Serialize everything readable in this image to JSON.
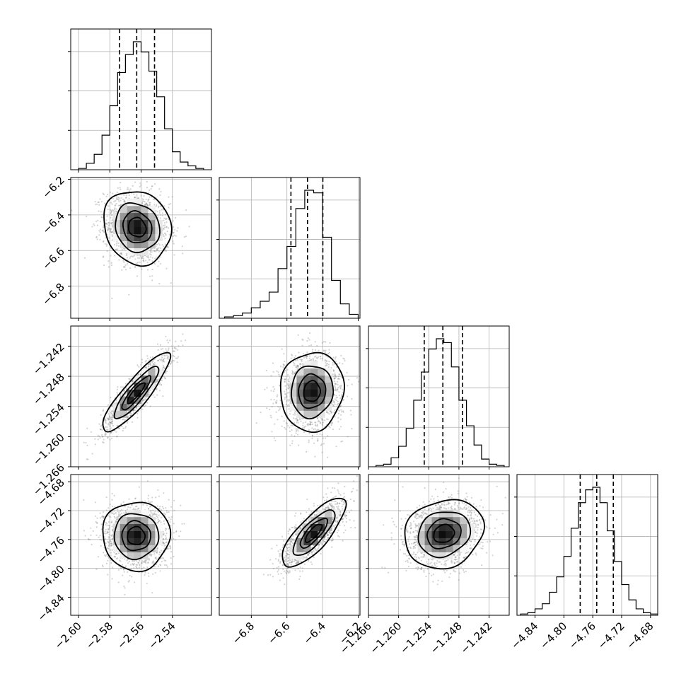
{
  "chart_data": {
    "type": "corner",
    "parameters": [
      {
        "index": 0,
        "range": [
          -2.605,
          -2.515
        ],
        "ticks": [
          -2.6,
          -2.58,
          -2.56,
          -2.54
        ],
        "tick_labels": [
          "−2.60",
          "−2.58",
          "−2.56",
          "−2.54"
        ],
        "quantiles": [
          -2.5738,
          -2.5628,
          -2.5514
        ],
        "hist_bins": [
          -2.6,
          -2.595,
          -2.59,
          -2.585,
          -2.58,
          -2.575,
          -2.57,
          -2.565,
          -2.56,
          -2.555,
          -2.55,
          -2.545,
          -2.54,
          -2.535,
          -2.53,
          -2.525,
          -2.52
        ],
        "hist_counts": [
          1,
          5,
          12,
          27,
          50,
          76,
          90,
          100,
          92,
          77,
          57,
          32,
          14,
          6,
          3,
          1
        ]
      },
      {
        "index": 1,
        "range": [
          -6.98,
          -6.19
        ],
        "ticks": [
          -6.8,
          -6.6,
          -6.4,
          -6.2
        ],
        "tick_labels": [
          "−6.8",
          "−6.6",
          "−6.4",
          "−6.2"
        ],
        "quantiles": [
          -6.5775,
          -6.4845,
          -6.3984
        ],
        "hist_bins": [
          -6.95,
          -6.9,
          -6.85,
          -6.8,
          -6.75,
          -6.7,
          -6.65,
          -6.6,
          -6.55,
          -6.5,
          -6.45,
          -6.4,
          -6.35,
          -6.3,
          -6.25,
          -6.2
        ],
        "hist_counts": [
          1,
          2,
          4,
          8,
          13,
          20,
          38,
          55,
          84,
          98,
          96,
          62,
          29,
          11,
          3
        ]
      },
      {
        "index": 2,
        "range": [
          -1.266,
          -1.238
        ],
        "ticks": [
          -1.266,
          -1.26,
          -1.254,
          -1.248,
          -1.242
        ],
        "tick_labels": [
          "−1.266",
          "−1.260",
          "−1.254",
          "−1.248",
          "−1.242"
        ],
        "quantiles": [
          -1.2549,
          -1.2512,
          -1.2473
        ],
        "hist_bins": [
          -1.2645,
          -1.263,
          -1.2615,
          -1.26,
          -1.2585,
          -1.257,
          -1.2555,
          -1.254,
          -1.2525,
          -1.251,
          -1.2495,
          -1.248,
          -1.2465,
          -1.245,
          -1.2435,
          -1.242,
          -1.2405,
          -1.239
        ],
        "hist_counts": [
          1,
          2,
          7,
          16,
          30,
          52,
          74,
          92,
          100,
          97,
          78,
          52,
          32,
          17,
          6,
          2,
          1
        ]
      },
      {
        "index": 3,
        "range": [
          -4.865,
          -4.67
        ],
        "ticks": [
          -4.84,
          -4.8,
          -4.76,
          -4.72,
          -4.68
        ],
        "tick_labels": [
          "−4.84",
          "−4.80",
          "−4.76",
          "−4.72",
          "−4.68"
        ],
        "quantiles": [
          -4.7774,
          -4.7545,
          -4.7315
        ],
        "hist_bins": [
          -4.86,
          -4.85,
          -4.84,
          -4.83,
          -4.82,
          -4.81,
          -4.8,
          -4.79,
          -4.78,
          -4.77,
          -4.76,
          -4.75,
          -4.74,
          -4.73,
          -4.72,
          -4.71,
          -4.7,
          -4.69,
          -4.68,
          -4.67
        ],
        "hist_counts": [
          1,
          2,
          5,
          9,
          18,
          30,
          46,
          68,
          88,
          98,
          100,
          88,
          66,
          42,
          24,
          12,
          5,
          2,
          1
        ]
      }
    ],
    "pairs": [
      {
        "x": 0,
        "y": 1,
        "peak": [
          -2.5625,
          -6.47
        ],
        "sigma": [
          0.0104,
          0.1003
        ],
        "correlation": -0.12
      },
      {
        "x": 0,
        "y": 2,
        "peak": [
          -2.5632,
          -1.2513
        ],
        "sigma": [
          0.0104,
          0.0038
        ],
        "correlation": 0.88
      },
      {
        "x": 1,
        "y": 2,
        "peak": [
          -6.46,
          -1.251
        ],
        "sigma": [
          0.086,
          0.0038
        ],
        "correlation": 0.05
      },
      {
        "x": 0,
        "y": 3,
        "peak": [
          -2.5632,
          -4.755
        ],
        "sigma": [
          0.0104,
          0.023
        ],
        "correlation": 0.0
      },
      {
        "x": 1,
        "y": 3,
        "peak": [
          -6.45,
          -4.751
        ],
        "sigma": [
          0.086,
          0.023
        ],
        "correlation": 0.78
      },
      {
        "x": 2,
        "y": 3,
        "peak": [
          -1.251,
          -4.752
        ],
        "sigma": [
          0.0038,
          0.023
        ],
        "correlation": 0.15
      }
    ],
    "contour_levels_sigma": [
      0.5,
      1.0,
      1.5,
      2.0
    ],
    "density_colormap": [
      "#ffffff",
      "#000000"
    ],
    "scatter_color": "#808080",
    "grid": true
  }
}
